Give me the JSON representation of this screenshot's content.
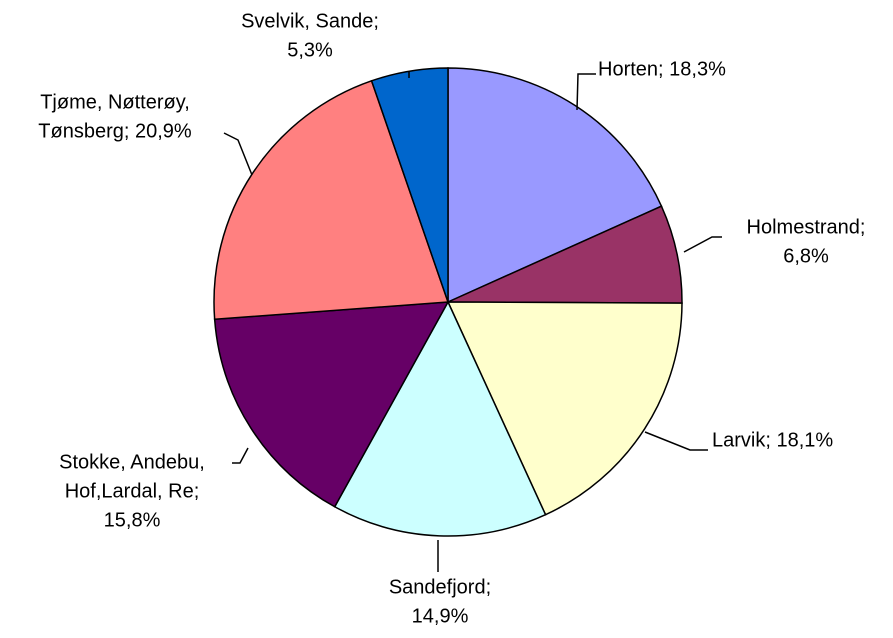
{
  "chart_data": {
    "type": "pie",
    "values": [
      18.3,
      6.8,
      18.1,
      14.9,
      15.8,
      20.9,
      5.3
    ],
    "value_labels": [
      [
        "Horten; 18,3%"
      ],
      [
        "Holmestrand;",
        "6,8%"
      ],
      [
        "Larvik; 18,1%"
      ],
      [
        "Sandefjord;",
        "14,9%"
      ],
      [
        "Stokke, Andebu,",
        "Hof,Lardal, Re;",
        "15,8%"
      ],
      [
        "Tjøme, Nøtterøy,",
        "Tønsberg; 20,9%"
      ],
      [
        "Svelvik, Sande;",
        "5,3%"
      ]
    ],
    "colors": [
      "#9999ff",
      "#993366",
      "#ffffcc",
      "#ccffff",
      "#660066",
      "#ff8080",
      "#0066cc"
    ]
  }
}
